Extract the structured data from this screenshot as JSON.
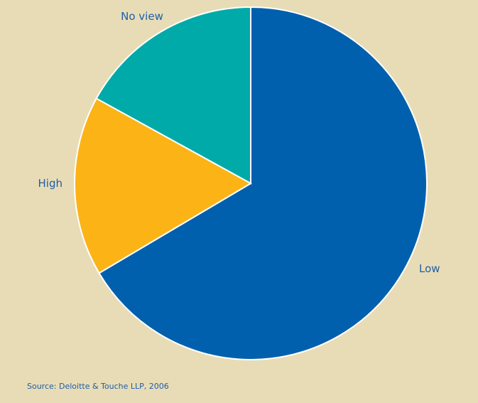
{
  "chart_data": {
    "type": "pie",
    "title": "",
    "slices": [
      {
        "label": "Low",
        "value": 66.5,
        "color": "#0060ae"
      },
      {
        "label": "High",
        "value": 16.5,
        "color": "#fbb316"
      },
      {
        "label": "No view",
        "value": 17.0,
        "color": "#00aaa8"
      }
    ],
    "start": "12 o'clock",
    "direction": "clockwise",
    "legend": "none",
    "labels": "outside slices"
  },
  "source": "Source: Deloitte & Touche LLP, 2006"
}
